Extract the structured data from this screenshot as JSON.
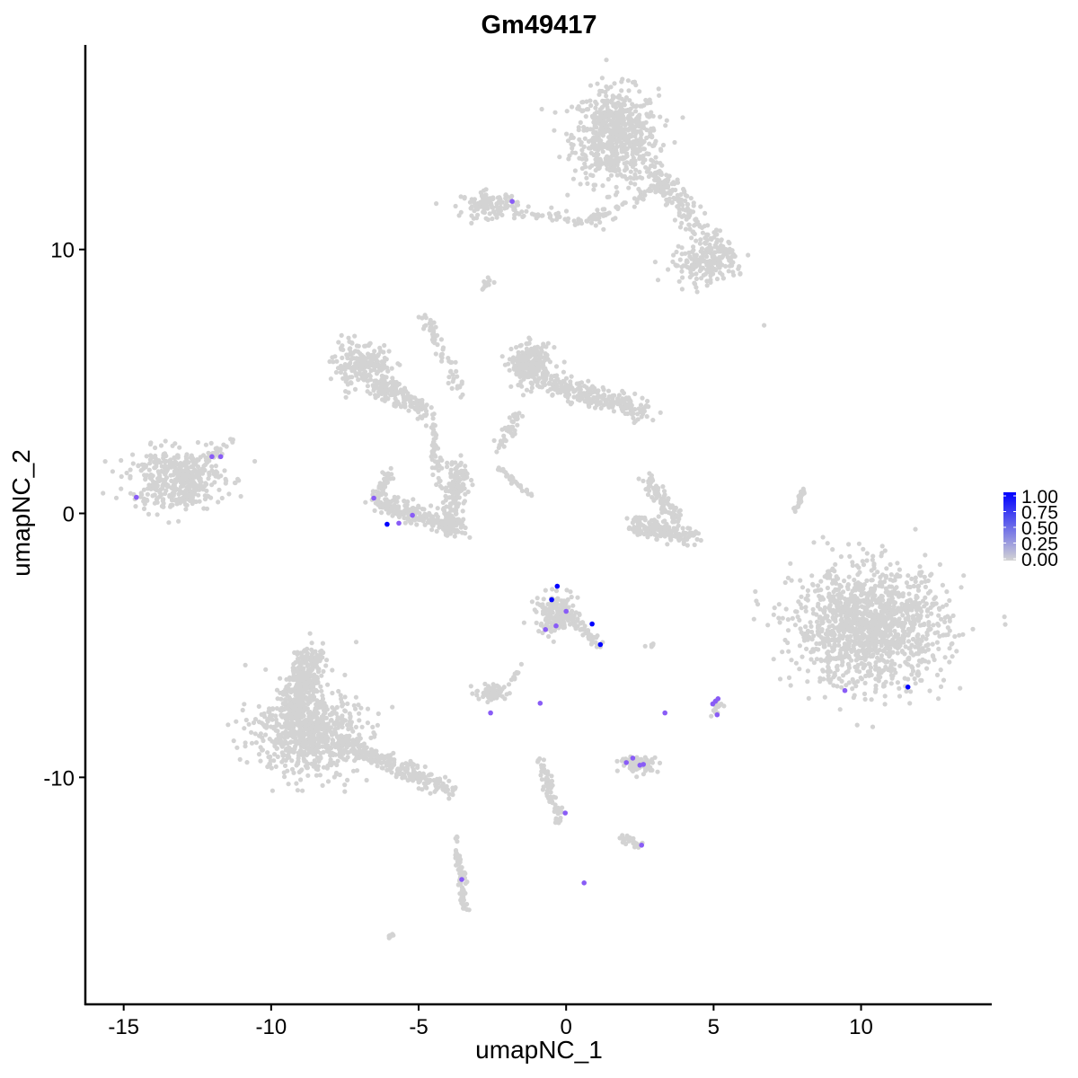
{
  "chart_data": {
    "type": "scatter",
    "title": "Gm49417",
    "xlabel": "umapNC_1",
    "ylabel": "umapNC_2",
    "xlim": [
      -16.3,
      14.4
    ],
    "ylim": [
      -18.6,
      17.75
    ],
    "xticks": [
      -15,
      -10,
      -5,
      0,
      5,
      10
    ],
    "yticks": [
      -10,
      0,
      10
    ],
    "xtick_labels": [
      "-15",
      "-10",
      "-5",
      "0",
      "5",
      "10"
    ],
    "ytick_labels": [
      "-10",
      "0",
      "10"
    ],
    "grid": false,
    "colors": {
      "low": "#D3D3D3",
      "high": "#0000FF"
    },
    "legend": {
      "position": "right",
      "range": [
        0,
        1
      ],
      "labels": [
        "1.00",
        "0.75",
        "0.50",
        "0.25",
        "0.00"
      ],
      "values": [
        1.0,
        0.75,
        0.5,
        0.25,
        0.0
      ]
    },
    "background_cells_approx": [
      {
        "kind": "blob",
        "x": 1.68,
        "y": 14.3,
        "sx": 0.9,
        "sy": 1.1,
        "n": 650
      },
      {
        "kind": "stream",
        "from": [
          2.7,
          13.3
        ],
        "to": [
          5.5,
          9.6
        ],
        "w": 0.45,
        "n": 220
      },
      {
        "kind": "blob",
        "x": 4.7,
        "y": 9.4,
        "sx": 0.7,
        "sy": 0.4,
        "n": 150
      },
      {
        "kind": "blob",
        "x": -2.6,
        "y": 11.7,
        "sx": 0.6,
        "sy": 0.3,
        "n": 120
      },
      {
        "kind": "stream",
        "from": [
          -1.8,
          11.4
        ],
        "to": [
          1.0,
          11.1
        ],
        "w": 0.2,
        "n": 50
      },
      {
        "kind": "stream",
        "from": [
          1.0,
          11.2
        ],
        "to": [
          3.5,
          12.5
        ],
        "w": 0.35,
        "n": 60
      },
      {
        "kind": "blob",
        "x": -2.75,
        "y": 8.7,
        "sx": 0.15,
        "sy": 0.2,
        "n": 15
      },
      {
        "kind": "blob",
        "x": -6.9,
        "y": 5.6,
        "sx": 0.6,
        "sy": 0.5,
        "n": 200
      },
      {
        "kind": "stream",
        "from": [
          -6.5,
          5.0
        ],
        "to": [
          -4.7,
          3.8
        ],
        "w": 0.4,
        "n": 150
      },
      {
        "kind": "stream",
        "from": [
          -4.8,
          7.5
        ],
        "to": [
          -3.5,
          4.5
        ],
        "w": 0.2,
        "n": 60
      },
      {
        "kind": "stream",
        "from": [
          -4.5,
          3.5
        ],
        "to": [
          -4.3,
          1.0
        ],
        "w": 0.2,
        "n": 50
      },
      {
        "kind": "blob",
        "x": -1.2,
        "y": 5.6,
        "sx": 0.4,
        "sy": 0.5,
        "n": 250
      },
      {
        "kind": "stream",
        "from": [
          -0.8,
          5.0
        ],
        "to": [
          2.6,
          3.9
        ],
        "w": 0.45,
        "n": 250
      },
      {
        "kind": "stream",
        "from": [
          -1.6,
          3.8
        ],
        "to": [
          -2.3,
          2.4
        ],
        "w": 0.2,
        "n": 40
      },
      {
        "kind": "stream",
        "from": [
          -2.3,
          1.7
        ],
        "to": [
          -1.2,
          0.7
        ],
        "w": 0.1,
        "n": 30
      },
      {
        "kind": "blob",
        "x": -13.2,
        "y": 1.3,
        "sx": 1.0,
        "sy": 0.7,
        "n": 420
      },
      {
        "kind": "stream",
        "from": [
          -12.3,
          2.0
        ],
        "to": [
          -11.3,
          2.8
        ],
        "w": 0.15,
        "n": 25
      },
      {
        "kind": "stream",
        "from": [
          -6.4,
          0.4
        ],
        "to": [
          -3.6,
          -0.6
        ],
        "w": 0.35,
        "n": 250
      },
      {
        "kind": "stream",
        "from": [
          -3.9,
          -0.3
        ],
        "to": [
          -3.6,
          1.8
        ],
        "w": 0.35,
        "n": 150
      },
      {
        "kind": "stream",
        "from": [
          -6.5,
          0.6
        ],
        "to": [
          -6.0,
          1.5
        ],
        "w": 0.25,
        "n": 40
      },
      {
        "kind": "stream",
        "from": [
          2.2,
          -0.4
        ],
        "to": [
          4.4,
          -0.9
        ],
        "w": 0.35,
        "n": 180
      },
      {
        "kind": "stream",
        "from": [
          2.8,
          1.2
        ],
        "to": [
          3.8,
          -0.2
        ],
        "w": 0.3,
        "n": 80
      },
      {
        "kind": "stream",
        "from": [
          7.7,
          0.0
        ],
        "to": [
          8.1,
          0.95
        ],
        "w": 0.1,
        "n": 25
      },
      {
        "kind": "blob",
        "x": 10.3,
        "y": -4.3,
        "sx": 1.6,
        "sy": 1.4,
        "n": 1300
      },
      {
        "kind": "blob",
        "x": -0.3,
        "y": -3.8,
        "sx": 0.45,
        "sy": 0.45,
        "n": 160
      },
      {
        "kind": "stream",
        "from": [
          0.2,
          -4.0
        ],
        "to": [
          1.2,
          -5.0
        ],
        "w": 0.2,
        "n": 40
      },
      {
        "kind": "blob",
        "x": -8.8,
        "y": -8.3,
        "sx": 1.1,
        "sy": 1.0,
        "n": 700
      },
      {
        "kind": "stream",
        "from": [
          -9.2,
          -7.5
        ],
        "to": [
          -8.6,
          -5.2
        ],
        "w": 0.55,
        "n": 300
      },
      {
        "kind": "stream",
        "from": [
          -7.8,
          -8.6
        ],
        "to": [
          -4.0,
          -10.5
        ],
        "w": 0.35,
        "n": 260
      },
      {
        "kind": "blob",
        "x": -2.5,
        "y": -6.8,
        "sx": 0.35,
        "sy": 0.2,
        "n": 60
      },
      {
        "kind": "stream",
        "from": [
          -1.8,
          -6.3
        ],
        "to": [
          -1.5,
          -5.6
        ],
        "w": 0.08,
        "n": 10
      },
      {
        "kind": "blob",
        "x": 2.5,
        "y": -9.5,
        "sx": 0.4,
        "sy": 0.18,
        "n": 90
      },
      {
        "kind": "stream",
        "from": [
          -0.9,
          -9.3
        ],
        "to": [
          -0.2,
          -11.7
        ],
        "w": 0.2,
        "n": 70
      },
      {
        "kind": "stream",
        "from": [
          1.9,
          -12.2
        ],
        "to": [
          2.6,
          -12.6
        ],
        "w": 0.2,
        "n": 30
      },
      {
        "kind": "stream",
        "from": [
          -3.8,
          -12.2
        ],
        "to": [
          -3.4,
          -15.0
        ],
        "w": 0.15,
        "n": 70
      },
      {
        "kind": "blob",
        "x": 5.1,
        "y": -7.3,
        "sx": 0.15,
        "sy": 0.2,
        "n": 15
      },
      {
        "kind": "blob",
        "x": 2.8,
        "y": -5.0,
        "sx": 0.15,
        "sy": 0.05,
        "n": 6
      },
      {
        "kind": "stream",
        "from": [
          -6.1,
          -16.1
        ],
        "to": [
          -5.8,
          -15.9
        ],
        "w": 0.05,
        "n": 6
      },
      {
        "kind": "blob",
        "x": 6.7,
        "y": 7.1,
        "sx": 0.02,
        "sy": 0.02,
        "n": 1
      }
    ],
    "expressing_cells": [
      {
        "x": -0.3,
        "y": -2.76,
        "value": 1.0
      },
      {
        "x": -0.49,
        "y": -3.27,
        "value": 1.0
      },
      {
        "x": 0.88,
        "y": -4.19,
        "value": 1.0
      },
      {
        "x": 1.16,
        "y": -4.97,
        "value": 1.0
      },
      {
        "x": -6.07,
        "y": -0.41,
        "value": 1.0
      },
      {
        "x": 11.59,
        "y": -6.58,
        "value": 1.0
      },
      {
        "x": -1.83,
        "y": 11.82,
        "value": 0.5
      },
      {
        "x": -12.01,
        "y": 2.15,
        "value": 0.5
      },
      {
        "x": -11.71,
        "y": 2.15,
        "value": 0.5
      },
      {
        "x": -14.57,
        "y": 0.61,
        "value": 0.5
      },
      {
        "x": -6.52,
        "y": 0.58,
        "value": 0.5
      },
      {
        "x": -5.67,
        "y": -0.37,
        "value": 0.5
      },
      {
        "x": -5.21,
        "y": -0.07,
        "value": 0.5
      },
      {
        "x": 0.0,
        "y": -3.71,
        "value": 0.5
      },
      {
        "x": -0.34,
        "y": -4.26,
        "value": 0.5
      },
      {
        "x": -0.7,
        "y": -4.4,
        "value": 0.5
      },
      {
        "x": -2.56,
        "y": -7.56,
        "value": 0.5
      },
      {
        "x": -0.88,
        "y": -7.19,
        "value": 0.5
      },
      {
        "x": 3.35,
        "y": -7.56,
        "value": 0.5
      },
      {
        "x": 5.06,
        "y": -7.12,
        "value": 0.5
      },
      {
        "x": 5.15,
        "y": -7.02,
        "value": 0.5
      },
      {
        "x": 4.97,
        "y": -7.22,
        "value": 0.5
      },
      {
        "x": 5.12,
        "y": -7.63,
        "value": 0.5
      },
      {
        "x": 2.04,
        "y": -9.44,
        "value": 0.5
      },
      {
        "x": 2.26,
        "y": -9.27,
        "value": 0.5
      },
      {
        "x": 2.5,
        "y": -9.54,
        "value": 0.5
      },
      {
        "x": 2.62,
        "y": -9.51,
        "value": 0.5
      },
      {
        "x": -0.03,
        "y": -11.35,
        "value": 0.5
      },
      {
        "x": 2.56,
        "y": -12.57,
        "value": 0.5
      },
      {
        "x": 0.61,
        "y": -14.0,
        "value": 0.5
      },
      {
        "x": -3.54,
        "y": -13.87,
        "value": 0.5
      },
      {
        "x": 9.45,
        "y": -6.71,
        "value": 0.5
      }
    ]
  }
}
